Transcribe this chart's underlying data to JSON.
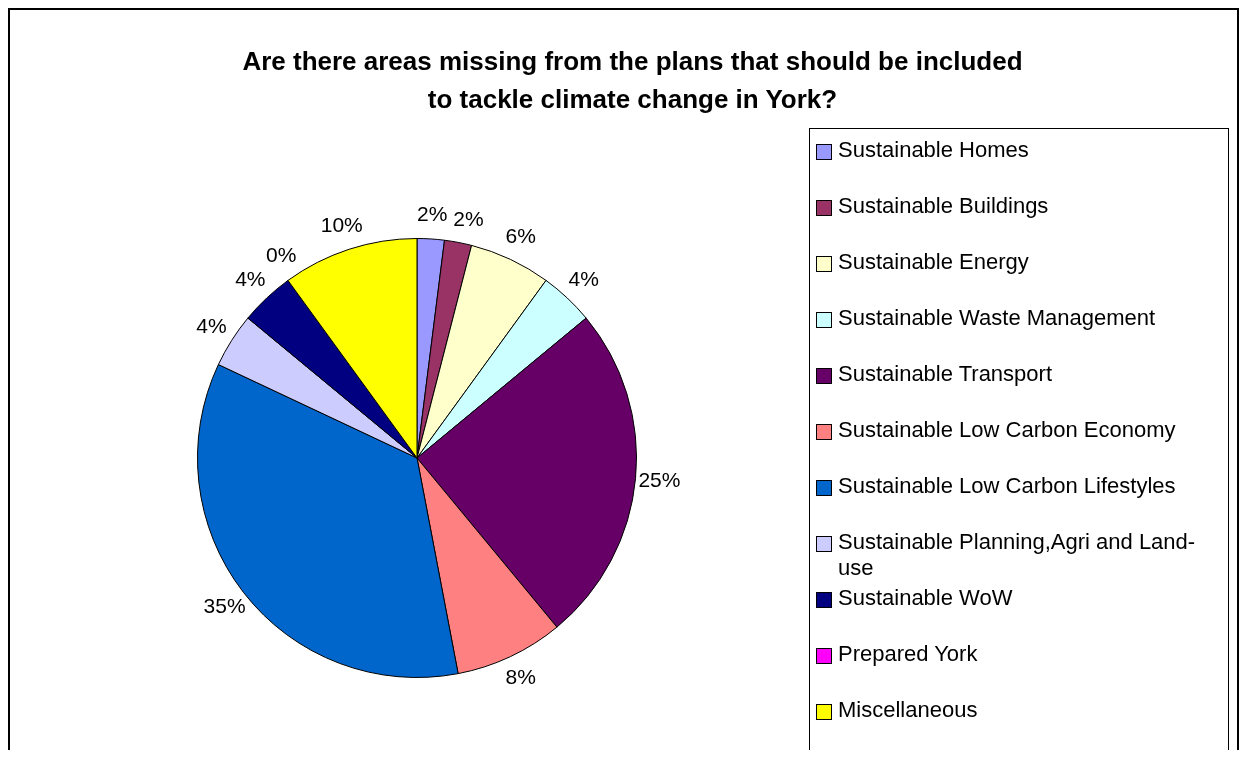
{
  "chart_data": {
    "type": "pie",
    "title": "Are there areas missing from the plans that should be included\nto tackle climate change in York?",
    "categories": [
      "Sustainable Homes",
      "Sustainable Buildings",
      "Sustainable Energy",
      "Sustainable Waste Management",
      "Sustainable Transport",
      "Sustainable Low Carbon Economy",
      "Sustainable Low Carbon Lifestyles",
      "Sustainable Planning,Agri and Land-use",
      "Sustainable WoW",
      "Prepared York",
      "Miscellaneous"
    ],
    "values": [
      2,
      2,
      6,
      4,
      25,
      8,
      35,
      4,
      4,
      0,
      10
    ],
    "colors": [
      "#9999ff",
      "#993366",
      "#ffffcc",
      "#ccffff",
      "#660066",
      "#ff8080",
      "#0066cc",
      "#ccccff",
      "#000080",
      "#ff00ff",
      "#ffff00"
    ],
    "value_labels": [
      "2%",
      "2%",
      "6%",
      "4%",
      "25%",
      "8%",
      "35%",
      "4%",
      "4%",
      "0%",
      "10%"
    ],
    "legend": "right"
  }
}
